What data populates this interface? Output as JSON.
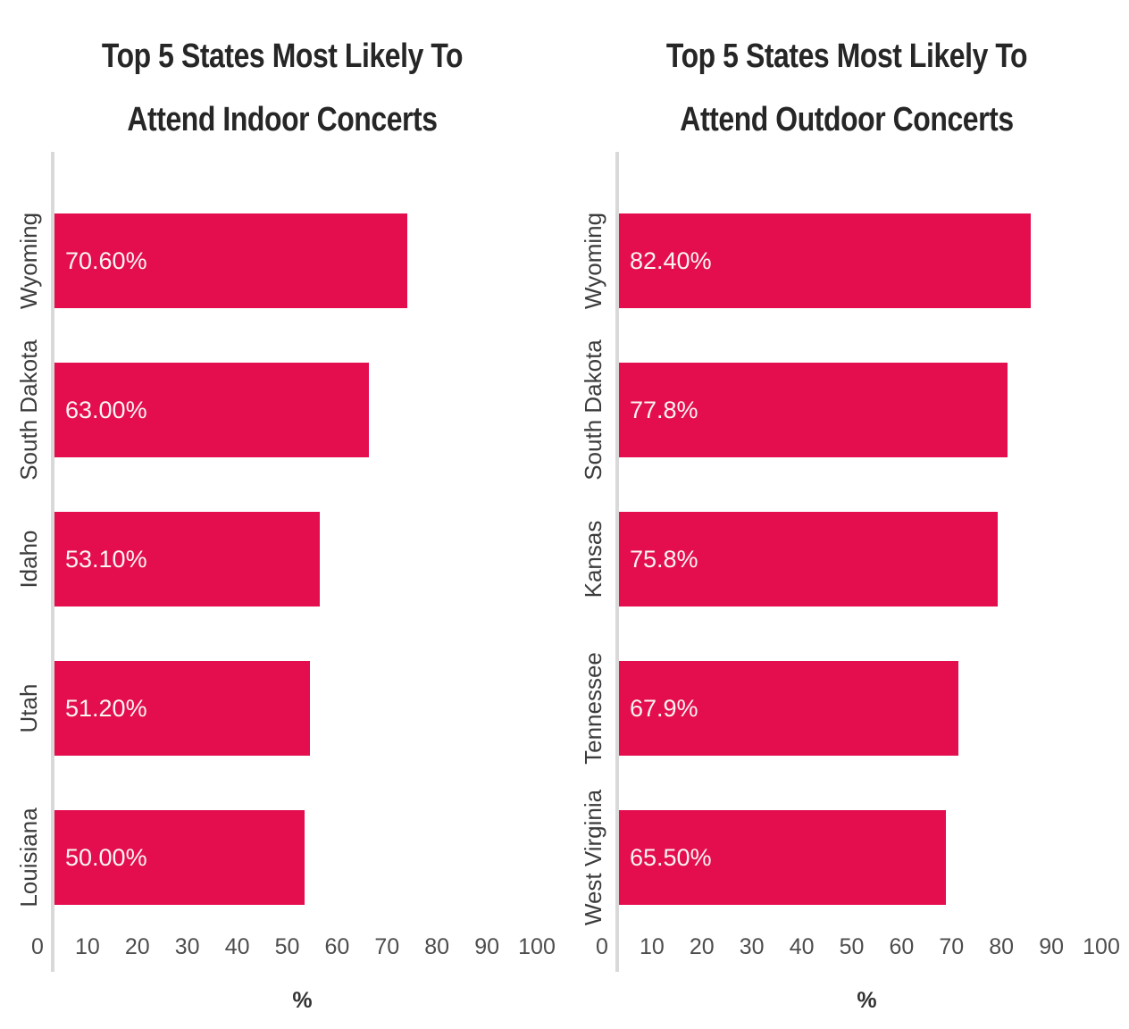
{
  "colors": {
    "bar": "#E40E4E",
    "title_text": "#262626",
    "category_label": "#3C3C3C",
    "tick_label": "#4D4D4D",
    "value_label": "#FAF5F3",
    "axis_line": "#D9D9D9",
    "background": "#FFFFFF"
  },
  "chart_data": [
    {
      "type": "bar",
      "orientation": "horizontal",
      "title": "Top 5 States Most Likely To Attend Indoor Concerts",
      "title_lines": [
        "Top 5 States Most Likely To",
        "Attend Indoor Concerts"
      ],
      "categories": [
        "Wyoming",
        "South Dakota",
        "Idaho",
        "Utah",
        "Louisiana"
      ],
      "values": [
        70.6,
        63.0,
        53.1,
        51.2,
        50.0
      ],
      "value_labels": [
        "70.60%",
        "63.00%",
        "53.10%",
        "51.20%",
        "50.00%"
      ],
      "xlabel": "%",
      "xlim": [
        0,
        100
      ],
      "xticks": [
        0,
        10,
        20,
        30,
        40,
        50,
        60,
        70,
        80,
        90,
        100
      ],
      "grid": false,
      "legend": null
    },
    {
      "type": "bar",
      "orientation": "horizontal",
      "title": "Top 5 States Most Likely To Attend Outdoor Concerts",
      "title_lines": [
        "Top 5 States Most Likely To",
        "Attend Outdoor Concerts"
      ],
      "categories": [
        "Wyoming",
        "South Dakota",
        "Kansas",
        "Tennessee",
        "West Virginia"
      ],
      "values": [
        82.4,
        77.8,
        75.8,
        67.9,
        65.5
      ],
      "value_labels": [
        "82.40%",
        "77.8%",
        "75.8%",
        "67.9%",
        "65.50%"
      ],
      "xlabel": "%",
      "xlim": [
        0,
        100
      ],
      "xticks": [
        0,
        10,
        20,
        30,
        40,
        50,
        60,
        70,
        80,
        90,
        100
      ],
      "grid": false,
      "legend": null
    }
  ]
}
